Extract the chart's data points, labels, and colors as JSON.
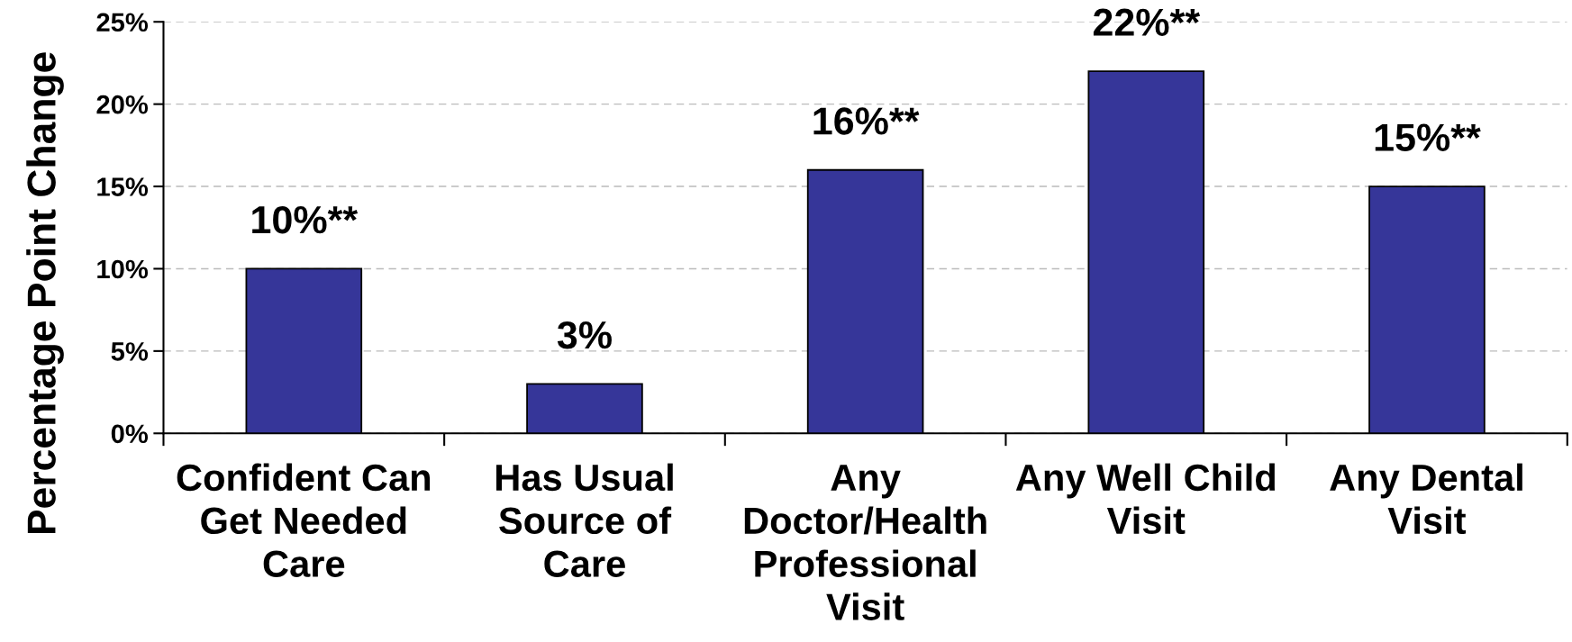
{
  "chart_data": {
    "type": "bar",
    "ylabel": "Percentage Point Change",
    "categories": [
      "Confident Can\nGet Needed\nCare",
      "Has Usual\nSource of\nCare",
      "Any\nDoctor/Health\nProfessional\nVisit",
      "Any Well Child\nVisit",
      "Any Dental\nVisit"
    ],
    "values": [
      10,
      3,
      16,
      22,
      15
    ],
    "color": "#363699",
    "value_labels": [
      "10%**",
      "3%",
      "16%**",
      "22%**",
      "15%**"
    ],
    "ylim": [
      0,
      25
    ],
    "yticks": [
      {
        "value": 0,
        "label": "0%"
      },
      {
        "value": 5,
        "label": "5%"
      },
      {
        "value": 10,
        "label": "10%"
      },
      {
        "value": 15,
        "label": "15%"
      },
      {
        "value": 20,
        "label": "20%"
      },
      {
        "value": 25,
        "label": "25%"
      }
    ],
    "grid": "y"
  }
}
